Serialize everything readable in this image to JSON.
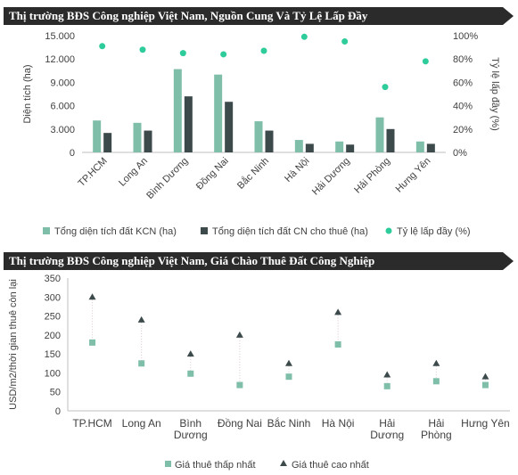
{
  "chart_data": [
    {
      "type": "bar",
      "title": "Thị trường BĐS Công nghiệp Việt Nam, Nguồn Cung Và Tỷ Lệ Lấp Đầy",
      "categories": [
        "TP.HCM",
        "Long An",
        "Bình Dương",
        "Đồng Nai",
        "Bắc Ninh",
        "Hà Nội",
        "Hải Dương",
        "Hải Phòng",
        "Hưng Yên"
      ],
      "series": [
        {
          "name": "Tổng diện tích đất KCN (ha)",
          "type": "bar",
          "axis": "left",
          "color": "#7fbfa9",
          "values": [
            4100,
            3800,
            10700,
            10000,
            4000,
            1600,
            1400,
            4500,
            1400
          ]
        },
        {
          "name": "Tổng diện tích đất CN cho thuê (ha)",
          "type": "bar",
          "axis": "left",
          "color": "#3d4a4b",
          "values": [
            2500,
            2800,
            7200,
            6500,
            2800,
            1100,
            1000,
            3000,
            1100
          ]
        },
        {
          "name": "Tỷ lệ lấp đầy (%)",
          "type": "scatter",
          "axis": "right",
          "color": "#2ecc9a",
          "values": [
            91,
            88,
            85,
            84,
            87,
            99,
            95,
            56,
            78
          ]
        }
      ],
      "ylabel": "Diện tích (ha)",
      "ylabel_right": "Tỷ lệ lấp đầy (%)",
      "ylim": [
        0,
        15000
      ],
      "yticks": [
        "0",
        "3.000",
        "6.000",
        "9.000",
        "12.000",
        "15.000"
      ],
      "ylim_right": [
        0,
        100
      ],
      "yticks_right": [
        "0%",
        "20%",
        "40%",
        "60%",
        "80%",
        "100%"
      ],
      "legend": "bottom",
      "grid": false
    },
    {
      "type": "scatter",
      "title": "Thị trường BĐS Công nghiệp Việt Nam, Giá Chào Thuê Đất Công Nghiệp",
      "categories": [
        [
          "TP.HCM"
        ],
        [
          "Long An"
        ],
        [
          "Bình",
          "Dương"
        ],
        [
          "Đồng Nai"
        ],
        [
          "Bắc Ninh"
        ],
        [
          "Hà Nội"
        ],
        [
          "Hải",
          "Dương"
        ],
        [
          "Hải",
          "Phòng"
        ],
        [
          "Hưng Yên"
        ]
      ],
      "series": [
        {
          "name": "Giá thuê thấp nhất",
          "marker": "square",
          "color": "#7fbfa9",
          "values": [
            180,
            125,
            98,
            68,
            90,
            175,
            65,
            78,
            68
          ]
        },
        {
          "name": "Giá thuê cao nhất",
          "marker": "triangle",
          "color": "#3d4a4b",
          "values": [
            300,
            240,
            150,
            200,
            125,
            260,
            95,
            125,
            90
          ]
        }
      ],
      "ylabel": "USD/m2/thời gian thuê còn lại",
      "ylim": [
        0,
        350
      ],
      "yticks": [
        "0",
        "50",
        "100",
        "150",
        "200",
        "250",
        "300",
        "350"
      ],
      "legend": "bottom",
      "grid": false
    }
  ]
}
